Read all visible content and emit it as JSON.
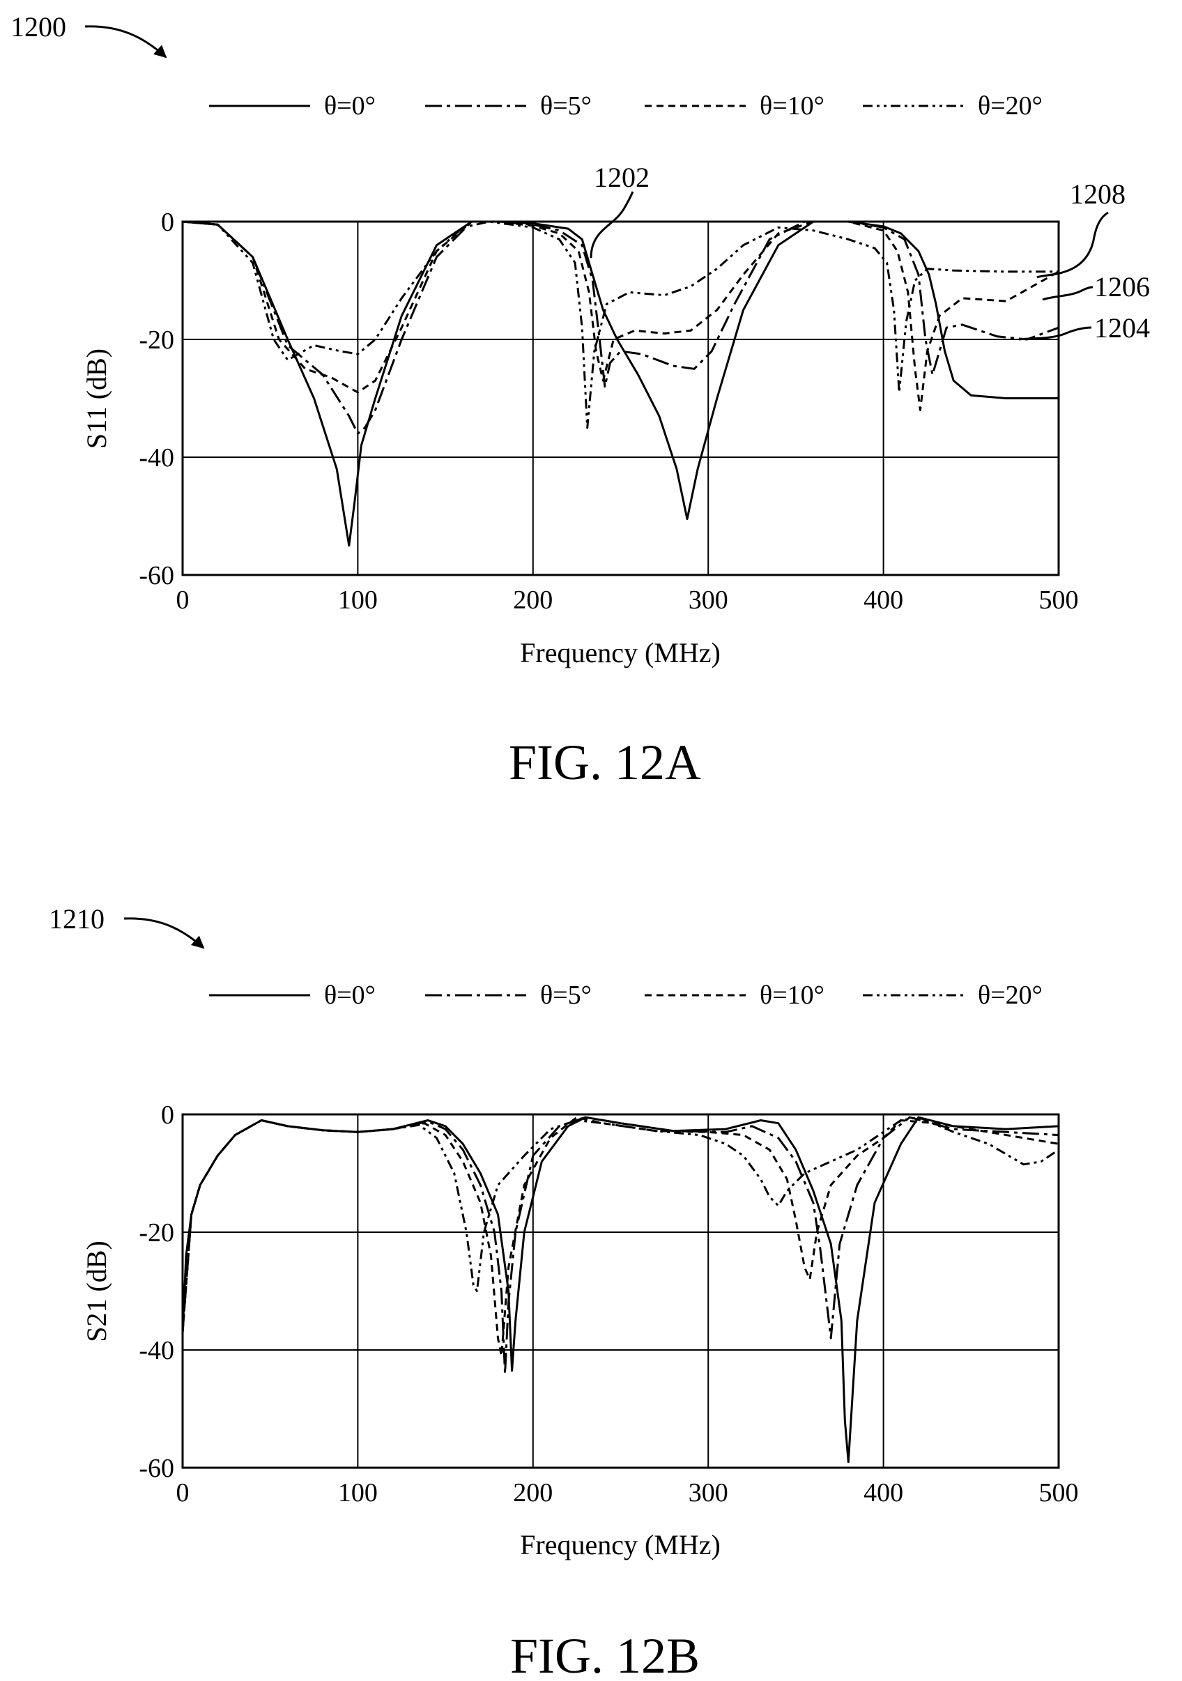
{
  "figure_a": {
    "ref_label": "1200",
    "caption": "FIG. 12A",
    "callouts": {
      "c1202": "1202",
      "c1204": "1204",
      "c1206": "1206",
      "c1208": "1208"
    }
  },
  "figure_b": {
    "ref_label": "1210",
    "caption": "FIG. 12B"
  },
  "chart_data": [
    {
      "type": "line",
      "xlabel": "Frequency (MHz)",
      "ylabel": "S11 (dB)",
      "xlim": [
        0,
        500
      ],
      "ylim": [
        -60,
        0
      ],
      "xticks": [
        "0",
        "100",
        "200",
        "300",
        "400",
        "500"
      ],
      "yticks": [
        "0",
        "-20",
        "-40",
        "-60"
      ],
      "grid": true,
      "legend": "top",
      "series": [
        {
          "name": "θ=0°",
          "style": "solid",
          "x": [
            0,
            20,
            40,
            60,
            75,
            88,
            95,
            98,
            102,
            110,
            125,
            145,
            165,
            180,
            200,
            220,
            228,
            232,
            236,
            240,
            248,
            260,
            272,
            282,
            288,
            294,
            305,
            320,
            340,
            360,
            380,
            400,
            410,
            420,
            426,
            430,
            435,
            440,
            450,
            470,
            500
          ],
          "y": [
            0,
            -0.5,
            -6,
            -20,
            -30,
            -42,
            -55,
            -48,
            -38,
            -30,
            -16,
            -4,
            0,
            0,
            -0.3,
            -1.2,
            -3,
            -7,
            -11,
            -15,
            -20,
            -26,
            -33,
            -42,
            -50.5,
            -42,
            -30,
            -15,
            -4,
            0,
            0,
            -0.8,
            -2,
            -5,
            -9,
            -14,
            -22,
            -27,
            -29.5,
            -30,
            -30
          ]
        },
        {
          "name": "θ=5°",
          "style": "dash-dot",
          "x": [
            0,
            20,
            40,
            60,
            80,
            95,
            100,
            104,
            110,
            125,
            145,
            165,
            180,
            200,
            215,
            228,
            234,
            238,
            241,
            244,
            250,
            262,
            280,
            292,
            302,
            315,
            335,
            355,
            380,
            400,
            412,
            420,
            424,
            428,
            432,
            436,
            445,
            465,
            482,
            500
          ],
          "y": [
            0,
            -0.5,
            -6,
            -21,
            -26,
            -33,
            -36,
            -35,
            -32,
            -20,
            -6,
            0,
            0,
            -0.5,
            -1.5,
            -4,
            -10,
            -20,
            -28,
            -24,
            -22,
            -22.5,
            -24.5,
            -25,
            -22,
            -14,
            -3,
            0,
            0,
            -1,
            -3,
            -9,
            -20,
            -26,
            -22,
            -18,
            -17.5,
            -19.5,
            -20,
            -18
          ]
        },
        {
          "name": "θ=10°",
          "style": "dashed",
          "x": [
            0,
            20,
            40,
            55,
            70,
            85,
            100,
            110,
            125,
            145,
            165,
            180,
            200,
            215,
            226,
            232,
            236,
            240,
            246,
            258,
            275,
            290,
            305,
            320,
            340,
            360,
            380,
            400,
            408,
            414,
            418,
            421,
            425,
            432,
            445,
            470,
            500
          ],
          "y": [
            0,
            -0.5,
            -6,
            -20,
            -25,
            -26.5,
            -29,
            -27,
            -18,
            -5,
            0,
            0,
            -0.7,
            -2,
            -5,
            -12,
            -22,
            -27,
            -20,
            -18.5,
            -19,
            -18.5,
            -15,
            -9,
            -2,
            0,
            0,
            -1.5,
            -5,
            -12,
            -25,
            -32,
            -22,
            -16,
            -13,
            -13.5,
            -8.5
          ]
        },
        {
          "name": "θ=20°",
          "style": "dash-dot-dot",
          "x": [
            0,
            20,
            40,
            52,
            60,
            75,
            90,
            100,
            110,
            125,
            145,
            160,
            175,
            200,
            215,
            224,
            228,
            231,
            235,
            242,
            255,
            275,
            290,
            305,
            320,
            340,
            360,
            380,
            395,
            402,
            406,
            409,
            413,
            418,
            425,
            440,
            470,
            500
          ],
          "y": [
            0,
            -0.5,
            -7,
            -20,
            -23.5,
            -21,
            -22,
            -22.5,
            -20,
            -13,
            -5,
            -1,
            0,
            -1,
            -3,
            -7,
            -18,
            -35,
            -22,
            -14,
            -12,
            -12.5,
            -11,
            -8,
            -4,
            -1,
            -1.5,
            -3,
            -4.5,
            -7,
            -15,
            -29,
            -17,
            -10,
            -8,
            -8.3,
            -8.5,
            -8.5
          ]
        }
      ]
    },
    {
      "type": "line",
      "xlabel": "Frequency (MHz)",
      "ylabel": "S21 (dB)",
      "xlim": [
        0,
        500
      ],
      "ylim": [
        -60,
        0
      ],
      "xticks": [
        "0",
        "100",
        "200",
        "300",
        "400",
        "500"
      ],
      "yticks": [
        "0",
        "-20",
        "-40",
        "-60"
      ],
      "grid": true,
      "legend": "top",
      "series": [
        {
          "name": "θ=0°",
          "style": "solid",
          "x": [
            0,
            2,
            5,
            10,
            20,
            30,
            45,
            60,
            80,
            100,
            120,
            140,
            150,
            160,
            170,
            180,
            186,
            188,
            190,
            195,
            205,
            220,
            230,
            250,
            280,
            310,
            330,
            340,
            350,
            360,
            370,
            376,
            378,
            380,
            385,
            395,
            410,
            420,
            440,
            470,
            500
          ],
          "y": [
            -37,
            -24,
            -17,
            -12,
            -7,
            -3.5,
            -1,
            -2,
            -2.7,
            -3,
            -2.5,
            -1,
            -2,
            -5,
            -10,
            -17,
            -30,
            -43.5,
            -35,
            -20,
            -8,
            -2,
            -0.5,
            -1.5,
            -2.8,
            -2.5,
            -1,
            -1.5,
            -6,
            -13,
            -22,
            -35,
            -52,
            -59,
            -35,
            -15,
            -5,
            -0.5,
            -2,
            -2.5,
            -2
          ]
        },
        {
          "name": "θ=5°",
          "style": "dash-dot",
          "x": [
            0,
            5,
            10,
            20,
            30,
            45,
            60,
            80,
            100,
            120,
            140,
            150,
            160,
            170,
            178,
            182,
            184,
            186,
            190,
            200,
            215,
            230,
            250,
            280,
            310,
            325,
            340,
            350,
            360,
            364,
            368,
            370,
            375,
            385,
            400,
            415,
            440,
            470,
            500
          ],
          "y": [
            -37,
            -17,
            -12,
            -7,
            -3.5,
            -1,
            -2,
            -2.7,
            -3,
            -2.5,
            -1.2,
            -2.5,
            -6,
            -12,
            -20,
            -30,
            -44,
            -32,
            -20,
            -7,
            -2,
            -0.5,
            -1.5,
            -2.8,
            -3,
            -2,
            -4,
            -8,
            -15,
            -23,
            -33,
            -38,
            -22,
            -12,
            -4,
            -0.5,
            -2.5,
            -3,
            -3.5
          ]
        },
        {
          "name": "θ=10°",
          "style": "dashed",
          "x": [
            0,
            5,
            10,
            20,
            30,
            45,
            60,
            80,
            100,
            120,
            138,
            150,
            160,
            170,
            176,
            180,
            182,
            186,
            195,
            210,
            225,
            240,
            270,
            300,
            320,
            335,
            345,
            350,
            355,
            358,
            362,
            370,
            385,
            400,
            410,
            430,
            460,
            500
          ],
          "y": [
            -37,
            -17,
            -12,
            -7,
            -3.5,
            -1,
            -2,
            -2.7,
            -3,
            -2.5,
            -1.5,
            -3.5,
            -8,
            -15,
            -24,
            -38,
            -41,
            -26,
            -12,
            -4,
            -0.5,
            -1.5,
            -2.8,
            -3,
            -3.5,
            -6,
            -11,
            -18,
            -26,
            -28,
            -20,
            -12,
            -7,
            -4,
            -1,
            -1.5,
            -3,
            -5
          ]
        },
        {
          "name": "θ=20°",
          "style": "dash-dot-dot",
          "x": [
            0,
            5,
            10,
            20,
            30,
            45,
            60,
            80,
            100,
            120,
            135,
            145,
            155,
            162,
            166,
            168,
            172,
            180,
            195,
            210,
            225,
            240,
            270,
            295,
            310,
            320,
            330,
            335,
            340,
            345,
            355,
            370,
            385,
            400,
            410,
            420,
            440,
            460,
            480,
            490,
            500
          ],
          "y": [
            -37,
            -17,
            -12,
            -7,
            -3.5,
            -1,
            -2,
            -2.7,
            -3,
            -2.5,
            -1.8,
            -4,
            -10,
            -20,
            -29,
            -30,
            -20,
            -12,
            -7,
            -2.5,
            -1,
            -1.5,
            -2.8,
            -3.5,
            -5,
            -7,
            -11,
            -14,
            -15.5,
            -13,
            -10,
            -8,
            -6,
            -3,
            -1,
            -0.5,
            -3,
            -5,
            -8.5,
            -8,
            -6
          ]
        }
      ]
    }
  ]
}
